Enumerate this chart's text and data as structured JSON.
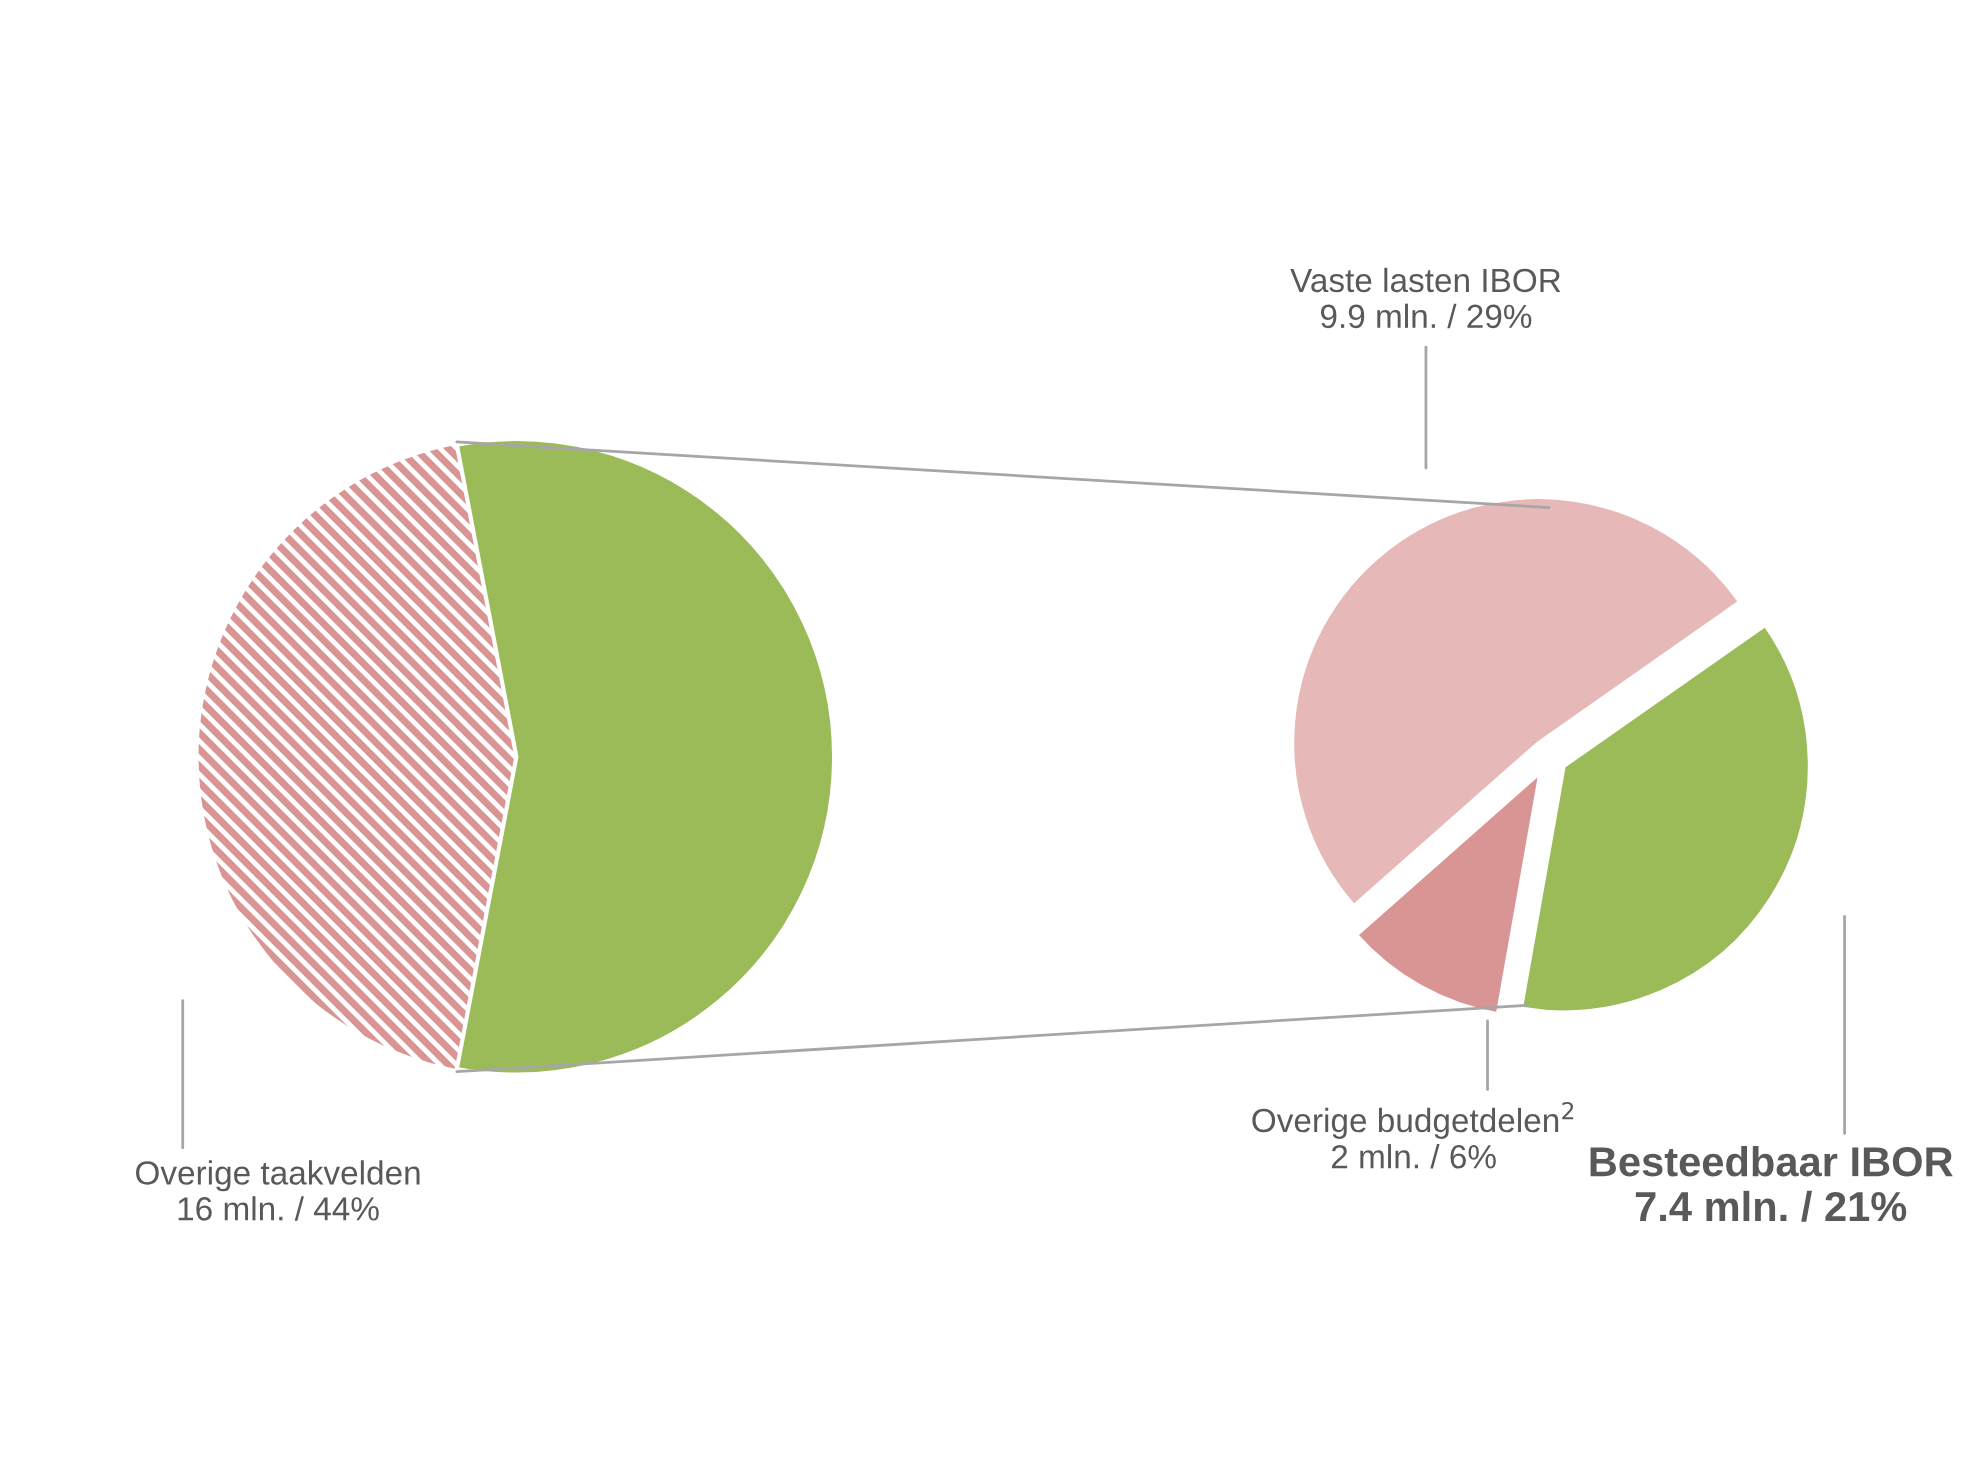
{
  "chart_data": [
    {
      "type": "pie",
      "categories": [
        "Overige taakvelden",
        null
      ],
      "values": [
        44,
        56
      ],
      "colors": [
        "#d99594",
        "#9bbb59"
      ],
      "value_labels": [
        "16 mln. / 44%",
        null
      ]
    },
    {
      "type": "pie",
      "categories": [
        "Vaste lasten IBOR",
        "Overige budgetdelen$^{2}$",
        "Besteedbaar IBOR"
      ],
      "values": [
        29,
        6,
        21
      ],
      "colors": [
        "#e6b8b7",
        "#d99594",
        "#9bbb59"
      ],
      "value_labels": [
        "9.9 mln. / 29%",
        "2 mln. / 6%",
        "7.4 mln. / 21%"
      ]
    }
  ]
}
